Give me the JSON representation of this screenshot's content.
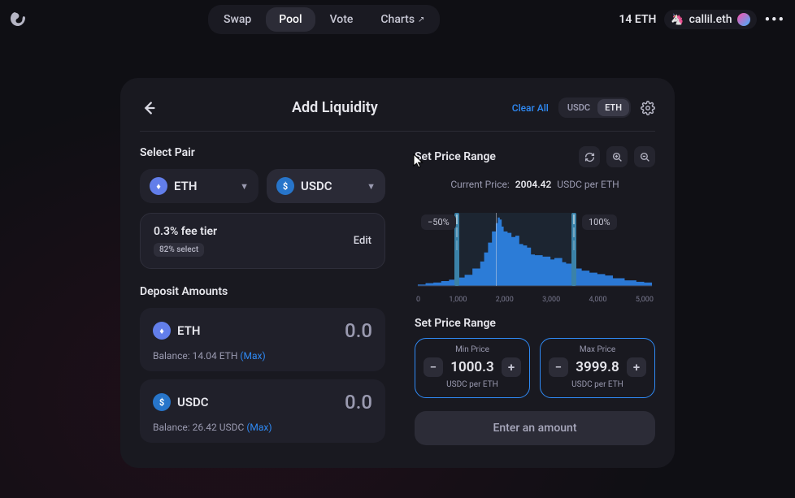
{
  "nav": {
    "items": [
      "Swap",
      "Pool",
      "Vote",
      "Charts"
    ],
    "active": "Pool",
    "external_icon": "↗"
  },
  "wallet": {
    "balance": "14 ETH",
    "unicorn": "🦄",
    "name": "callil.eth"
  },
  "panel": {
    "title": "Add Liquidity",
    "clear": "Clear All",
    "toggle": {
      "a": "USDC",
      "b": "ETH",
      "selected": "ETH"
    }
  },
  "selectPair": {
    "title": "Select Pair",
    "a": {
      "symbol": "ETH",
      "color": "#627eea",
      "glyph": "♦"
    },
    "b": {
      "symbol": "USDC",
      "color": "#2775ca",
      "glyph": "$"
    }
  },
  "feeTier": {
    "label": "0.3% fee tier",
    "badge": "82% select",
    "edit": "Edit"
  },
  "deposit": {
    "title": "Deposit Amounts",
    "rows": [
      {
        "symbol": "ETH",
        "color": "#627eea",
        "glyph": "♦",
        "value": "0.0",
        "balance_prefix": "Balance: ",
        "balance": "14.04 ETH",
        "max": "(Max)"
      },
      {
        "symbol": "USDC",
        "color": "#2775ca",
        "glyph": "$",
        "value": "0.0",
        "balance_prefix": "Balance: ",
        "balance": "26.42 USDC",
        "max": "(Max)"
      }
    ]
  },
  "range": {
    "title": "Set Price Range",
    "current_label": "Current Price:",
    "current_value": "2004.42",
    "current_unit": "USDC per ETH",
    "chart": {
      "type": "area-histogram",
      "xlim": [
        0,
        6000
      ],
      "ylim": [
        0,
        100
      ],
      "ticks": [
        "0",
        "1,000",
        "2,000",
        "3,000",
        "4,000",
        "5,000"
      ],
      "points": [
        [
          0,
          0
        ],
        [
          200,
          2
        ],
        [
          400,
          4
        ],
        [
          600,
          5
        ],
        [
          800,
          7
        ],
        [
          1000,
          9
        ],
        [
          1200,
          12
        ],
        [
          1400,
          16
        ],
        [
          1600,
          25
        ],
        [
          1700,
          35
        ],
        [
          1800,
          48
        ],
        [
          1900,
          62
        ],
        [
          2000,
          78
        ],
        [
          2050,
          90
        ],
        [
          2100,
          98
        ],
        [
          2150,
          95
        ],
        [
          2200,
          85
        ],
        [
          2300,
          78
        ],
        [
          2400,
          76
        ],
        [
          2500,
          70
        ],
        [
          2600,
          72
        ],
        [
          2700,
          60
        ],
        [
          2800,
          58
        ],
        [
          2900,
          55
        ],
        [
          3000,
          45
        ],
        [
          3200,
          44
        ],
        [
          3400,
          42
        ],
        [
          3500,
          38
        ],
        [
          3700,
          40
        ],
        [
          3800,
          34
        ],
        [
          4000,
          32
        ],
        [
          4200,
          25
        ],
        [
          4400,
          22
        ],
        [
          4600,
          19
        ],
        [
          4800,
          17
        ],
        [
          5000,
          15
        ],
        [
          5300,
          11
        ],
        [
          5600,
          8
        ],
        [
          5800,
          6
        ],
        [
          6000,
          5
        ]
      ],
      "fill_color": "#2f8af5",
      "fill_opacity": 0.85,
      "background_color": "transparent",
      "axis_color": "#7a7a90",
      "handle_color": "#3b82a8",
      "current_price_x": 2004.42,
      "handle_left_x": 1000.3,
      "handle_right_x": 3999.8,
      "handle_left_label": "−50%",
      "handle_right_label": "100%"
    },
    "subtitle": "Set Price Range",
    "min": {
      "label": "Min Price",
      "value": "1000.3",
      "unit": "USDC per ETH"
    },
    "max": {
      "label": "Max Price",
      "value": "3999.8",
      "unit": "USDC per ETH"
    }
  },
  "enter": "Enter an amount"
}
